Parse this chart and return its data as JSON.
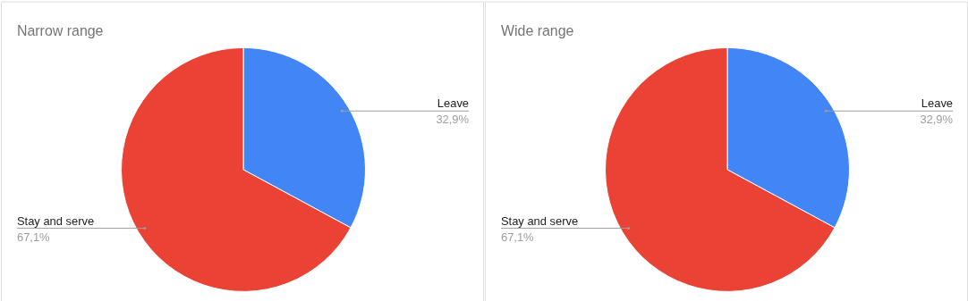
{
  "chart_data": [
    {
      "type": "pie",
      "title": "Narrow range",
      "categories": [
        "Leave",
        "Stay and serve"
      ],
      "values": [
        32.9,
        67.1
      ],
      "colors": [
        "#4285f4",
        "#ea4335"
      ],
      "value_labels": [
        "32,9%",
        "67,1%"
      ]
    },
    {
      "type": "pie",
      "title": "Wide range",
      "categories": [
        "Leave",
        "Stay and serve"
      ],
      "values": [
        32.9,
        67.1
      ],
      "colors": [
        "#4285f4",
        "#ea4335"
      ],
      "value_labels": [
        "32,9%",
        "67,1%"
      ]
    }
  ]
}
